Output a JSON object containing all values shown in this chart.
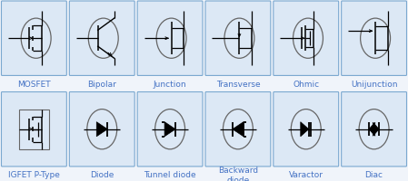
{
  "outer_bg": "#f0f4fa",
  "cell_bg": "#dce8f5",
  "border_color": "#7aa8d0",
  "label_color": "#4472c4",
  "label_fontsize": 6.5,
  "circle_color": "#666666",
  "line_color": "#111111",
  "labels_row1": [
    "MOSFET",
    "Bipolar",
    "Junction",
    "Transverse",
    "Ohmic",
    "Unijunction"
  ],
  "labels_row2": [
    "IGFET P-Type",
    "Diode",
    "Tunnel diode",
    "Backward\ndiode",
    "Varactor",
    "Diac"
  ],
  "figsize": [
    4.49,
    2.01
  ],
  "dpi": 100,
  "ncols": 6,
  "nrows": 2
}
